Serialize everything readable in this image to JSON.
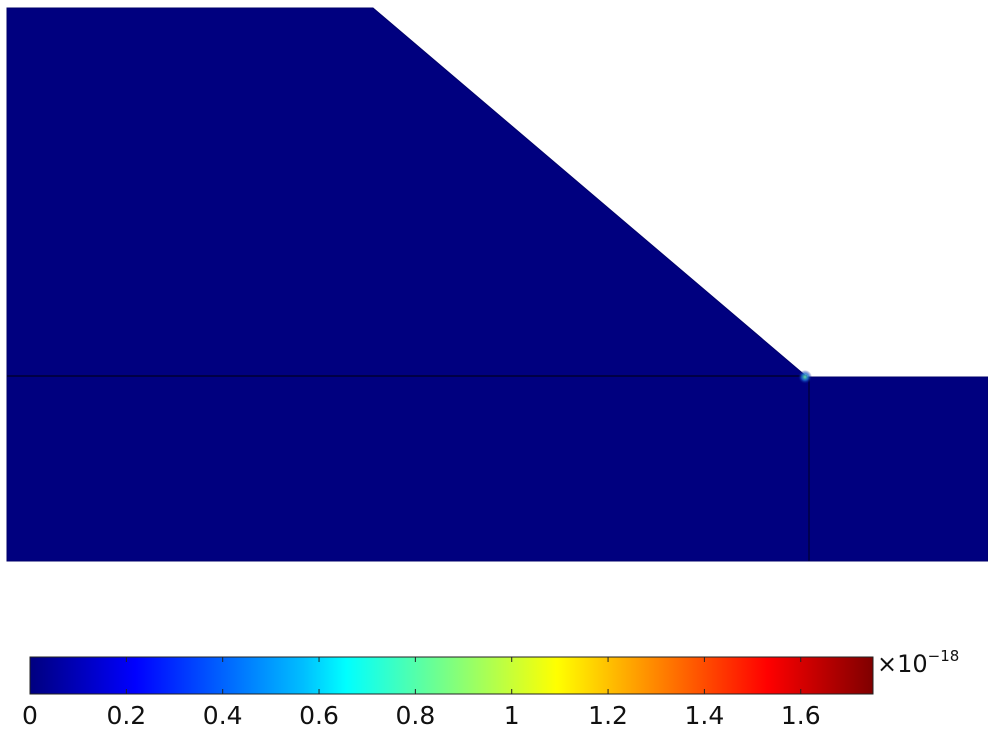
{
  "plot": {
    "colormap": "jet",
    "domain_color": "#00007f",
    "hotspot_color": "#38c8a0"
  },
  "colorbar": {
    "ticks": [
      {
        "value": 0,
        "label": "0"
      },
      {
        "value": 0.2,
        "label": "0.2"
      },
      {
        "value": 0.4,
        "label": "0.4"
      },
      {
        "value": 0.6,
        "label": "0.6"
      },
      {
        "value": 0.8,
        "label": "0.8"
      },
      {
        "value": 1,
        "label": "1"
      },
      {
        "value": 1.2,
        "label": "1.2"
      },
      {
        "value": 1.4,
        "label": "1.4"
      },
      {
        "value": 1.6,
        "label": "1.6"
      }
    ],
    "range": [
      0,
      1.75
    ],
    "exponent_prefix": "×10",
    "exponent_power": "−18",
    "colors": [
      "#00007f",
      "#0000ff",
      "#00bfff",
      "#00ffff",
      "#7fff7f",
      "#ffff00",
      "#ff7f00",
      "#ff0000",
      "#7f0000"
    ]
  }
}
